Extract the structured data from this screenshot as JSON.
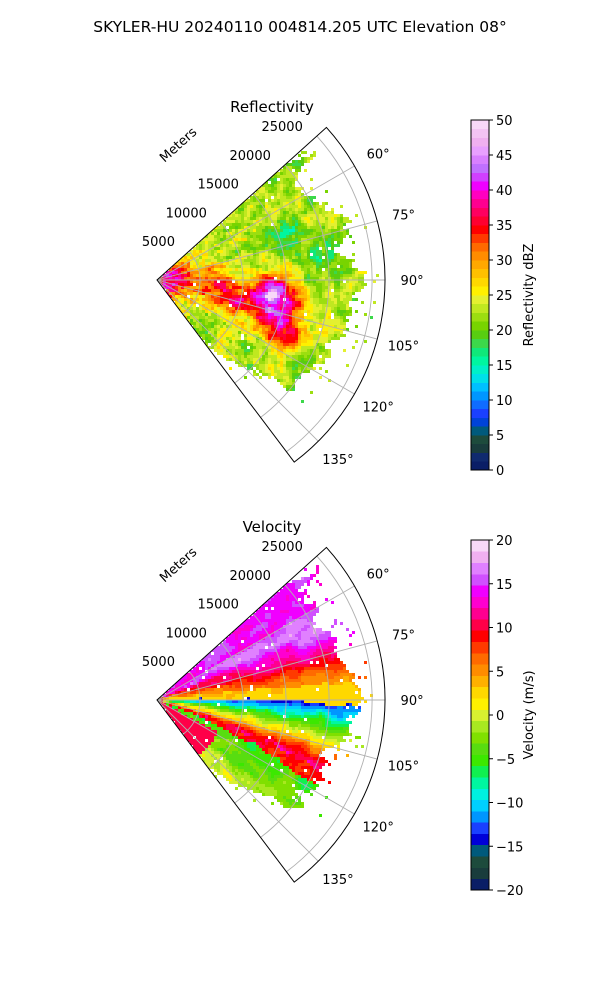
{
  "figure": {
    "title": "SKYLER-HU  20240110  004814.205 UTC Elevation 08°"
  },
  "chart_data": [
    {
      "type": "heatmap",
      "subtype": "radar-ppi-sector",
      "title": "Reflectivity",
      "range_axis_label": "Meters",
      "range_ticks": [
        5000,
        10000,
        15000,
        20000,
        25000
      ],
      "range_tick_labels": [
        "5000",
        "10000",
        "15000",
        "20000",
        "25000"
      ],
      "range_max": 26500,
      "azimuth_range": [
        48,
        143
      ],
      "azimuth_ticks": [
        60,
        75,
        90,
        105,
        120,
        135
      ],
      "azimuth_tick_labels": [
        "60°",
        "75°",
        "90°",
        "105°",
        "120°",
        "135°"
      ],
      "grid": true,
      "colorbar": {
        "label": "Reflectivity dBZ",
        "min": 0,
        "max": 50,
        "ticks": [
          0,
          5,
          10,
          15,
          20,
          25,
          30,
          35,
          40,
          45,
          50
        ],
        "tick_labels": [
          "0",
          "5",
          "10",
          "15",
          "20",
          "25",
          "30",
          "35",
          "40",
          "45",
          "50"
        ],
        "palette": [
          "#0a1e66",
          "#102a6e",
          "#193c3c",
          "#1d4b3c",
          "#005a7c",
          "#0043d8",
          "#1a40ff",
          "#0f6cff",
          "#0096ff",
          "#00c0ff",
          "#00e0e8",
          "#00f0c8",
          "#00f6a0",
          "#10e87a",
          "#3cd84a",
          "#58cd10",
          "#78d400",
          "#9cde10",
          "#c0e820",
          "#e4f030",
          "#fff000",
          "#ffd800",
          "#ffc000",
          "#ffa800",
          "#ff8c00",
          "#ff6a00",
          "#ff3a00",
          "#ff0000",
          "#ff0030",
          "#ff0060",
          "#ff0090",
          "#ff00c0",
          "#f000ff",
          "#d040ff",
          "#c070ff",
          "#d880ff",
          "#e8a0ff",
          "#f0b0f0",
          "#f4c4f4",
          "#f8d8f8"
        ]
      },
      "features": [
        {
          "az": 96,
          "r": 13000,
          "value": 42
        },
        {
          "az": 99,
          "r": 15500,
          "value": 40
        },
        {
          "az": 104,
          "r": 9500,
          "value": 38
        },
        {
          "az": 110,
          "r": 13500,
          "value": 36
        },
        {
          "az": 113,
          "r": 16500,
          "value": 40
        },
        {
          "az": 89,
          "r": 2000,
          "value": 40
        },
        {
          "az": 94,
          "r": 6500,
          "value": 36
        },
        {
          "az": 70,
          "r": 16000,
          "value": 18
        },
        {
          "az": 80,
          "r": 19500,
          "value": 18
        },
        {
          "az": 120,
          "r": 19000,
          "value": 20
        }
      ]
    },
    {
      "type": "heatmap",
      "subtype": "radar-ppi-sector",
      "title": "Velocity",
      "range_axis_label": "Meters",
      "range_ticks": [
        5000,
        10000,
        15000,
        20000,
        25000
      ],
      "range_tick_labels": [
        "5000",
        "10000",
        "15000",
        "20000",
        "25000"
      ],
      "range_max": 26500,
      "azimuth_range": [
        48,
        143
      ],
      "azimuth_ticks": [
        60,
        75,
        90,
        105,
        120,
        135
      ],
      "azimuth_tick_labels": [
        "60°",
        "75°",
        "90°",
        "105°",
        "120°",
        "135°"
      ],
      "grid": true,
      "colorbar": {
        "label": "Velocity (m/s)",
        "min": -20,
        "max": 20,
        "ticks": [
          -20,
          -15,
          -10,
          -5,
          0,
          5,
          10,
          15,
          20
        ],
        "tick_labels": [
          "−20",
          "−15",
          "−10",
          "−5",
          "0",
          "5",
          "10",
          "15",
          "20"
        ],
        "palette": [
          "#0a1e66",
          "#193c3c",
          "#1d4b3c",
          "#005a7c",
          "#0000d8",
          "#1a40ff",
          "#0096ff",
          "#00d0ff",
          "#00f0e0",
          "#00f6a0",
          "#10f050",
          "#3ce800",
          "#58dd10",
          "#80e000",
          "#a8e820",
          "#d8f030",
          "#fff000",
          "#ffd800",
          "#ffb000",
          "#ff8c00",
          "#ff6a00",
          "#ff3a00",
          "#ff0000",
          "#ff0048",
          "#ff0090",
          "#ff00d0",
          "#f000ff",
          "#d050ff",
          "#e080ff",
          "#f0b0f0",
          "#f8d8f8"
        ]
      },
      "features": [
        {
          "band": "outbound-inner",
          "az_range": [
            48,
            78
          ],
          "value": 13
        },
        {
          "band": "outbound-mid",
          "az_range": [
            66,
            92
          ],
          "value": 8
        },
        {
          "band": "near-zero",
          "az_range": [
            82,
            90
          ],
          "value": 1
        },
        {
          "band": "inbound-strong",
          "az_range": [
            88,
            100
          ],
          "value": -13
        },
        {
          "band": "outbound-south",
          "az_range": [
            95,
            108
          ],
          "value": 10
        },
        {
          "band": "inbound-south",
          "az_range": [
            105,
            128
          ],
          "value": -7
        },
        {
          "band": "outbound-southwest",
          "az_range": [
            112,
            128
          ],
          "value": 12
        }
      ]
    }
  ]
}
